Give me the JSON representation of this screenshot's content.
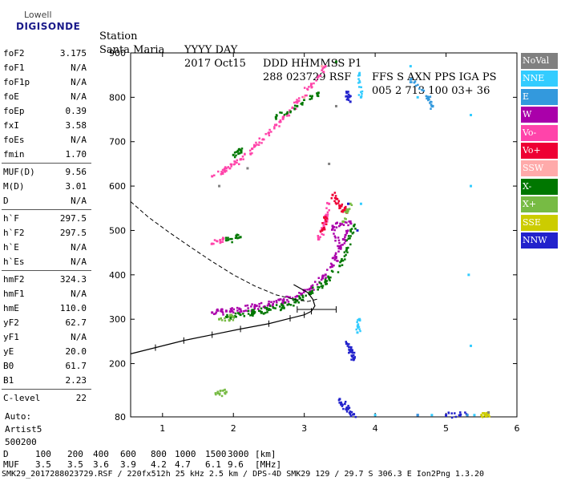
{
  "logo": {
    "brand": "Lowell",
    "product": "DIGISONDE"
  },
  "header": {
    "row1": [
      "Station",
      "YYYY DAY",
      "DDD HHMMSS P1",
      "FFS S AXN PPS IGA PS"
    ],
    "row2": [
      "Santa Maria",
      "2017 Oct15",
      "288 023729 RSF",
      "005 2 713 100 03+ 36"
    ]
  },
  "params": [
    {
      "label": "foF2",
      "value": "3.175"
    },
    {
      "label": "foF1",
      "value": "N/A"
    },
    {
      "label": "foF1p",
      "value": "N/A"
    },
    {
      "label": "foE",
      "value": "N/A"
    },
    {
      "label": "foEp",
      "value": "0.39"
    },
    {
      "label": "fxI",
      "value": "3.58"
    },
    {
      "label": "foEs",
      "value": "N/A"
    },
    {
      "label": "fmin",
      "value": "1.70"
    },
    {
      "label": "MUF(D)",
      "value": "9.56"
    },
    {
      "label": "M(D)",
      "value": "3.01"
    },
    {
      "label": "D",
      "value": "N/A"
    },
    {
      "label": "h`F",
      "value": "297.5"
    },
    {
      "label": "h`F2",
      "value": "297.5"
    },
    {
      "label": "h`E",
      "value": "N/A"
    },
    {
      "label": "h`Es",
      "value": "N/A"
    },
    {
      "label": "hmF2",
      "value": "324.3"
    },
    {
      "label": "hmF1",
      "value": "N/A"
    },
    {
      "label": "hmE",
      "value": "110.0"
    },
    {
      "label": "yF2",
      "value": "62.7"
    },
    {
      "label": "yF1",
      "value": "N/A"
    },
    {
      "label": "yE",
      "value": "20.0"
    },
    {
      "label": "B0",
      "value": "61.7"
    },
    {
      "label": "B1",
      "value": "2.23"
    },
    {
      "label": "C-level",
      "value": "22"
    }
  ],
  "auto": [
    "Auto:",
    "Artist5",
    "500200"
  ],
  "legend": [
    {
      "label": "NoVal",
      "color": "#808080"
    },
    {
      "label": "NNE",
      "color": "#33ccff"
    },
    {
      "label": "E",
      "color": "#3399dd"
    },
    {
      "label": "W",
      "color": "#aa00aa"
    },
    {
      "label": "Vo-",
      "color": "#ff44aa"
    },
    {
      "label": "Vo+",
      "color": "#ee0033"
    },
    {
      "label": "SSW",
      "color": "#ffaaaa"
    },
    {
      "label": "X-",
      "color": "#007700"
    },
    {
      "label": "X+",
      "color": "#77bb44"
    },
    {
      "label": "SSE",
      "color": "#cccc00"
    },
    {
      "label": "NNW",
      "color": "#2222cc"
    }
  ],
  "footer": {
    "row1": [
      "D",
      "100",
      "200",
      "400",
      "600",
      "800",
      "1000",
      "1500",
      "3000",
      "[km]"
    ],
    "row2": [
      "MUF",
      "3.5",
      "3.5",
      "3.6",
      "3.9",
      "4.2",
      "4.7",
      "6.1",
      "9.6",
      "[MHz]"
    ],
    "row3": "SMK29_2017288023729.RSF / 220fx512h 25 kHz 2.5 km / DPS-4D SMK29 129 / 29.7 S 306.3 E Ion2Png 1.3.20"
  },
  "chart_data": {
    "type": "scatter",
    "xlim": [
      0.55,
      6.0
    ],
    "ylim": [
      80,
      900
    ],
    "x_ticks": [
      1,
      2,
      3,
      4,
      5,
      6
    ],
    "y_ticks": [
      80,
      200,
      300,
      400,
      500,
      600,
      700,
      800,
      900
    ],
    "series": [
      {
        "name": "W",
        "color": "#aa00aa",
        "points": [
          [
            1.7,
            315
          ],
          [
            1.9,
            318
          ],
          [
            2.1,
            322
          ],
          [
            2.3,
            328
          ],
          [
            2.5,
            334
          ],
          [
            2.7,
            342
          ],
          [
            2.9,
            352
          ],
          [
            3.1,
            370
          ],
          [
            3.3,
            400
          ],
          [
            3.45,
            440
          ],
          [
            3.55,
            480
          ],
          [
            3.65,
            520
          ],
          [
            3.4,
            510
          ],
          [
            3.5,
            460
          ]
        ]
      },
      {
        "name": "Vo-",
        "color": "#ff44aa",
        "points": [
          [
            1.7,
            622
          ],
          [
            1.9,
            640
          ],
          [
            2.1,
            660
          ],
          [
            2.3,
            690
          ],
          [
            2.5,
            720
          ],
          [
            2.7,
            752
          ],
          [
            2.9,
            788
          ],
          [
            3.1,
            830
          ],
          [
            3.3,
            870
          ],
          [
            3.35,
            560
          ],
          [
            3.3,
            520
          ],
          [
            3.2,
            480
          ],
          [
            1.7,
            470
          ],
          [
            1.85,
            480
          ]
        ]
      },
      {
        "name": "Vo+",
        "color": "#ee0033",
        "points": [
          [
            3.3,
            530
          ],
          [
            3.25,
            500
          ],
          [
            3.4,
            580
          ],
          [
            3.5,
            555
          ],
          [
            3.6,
            540
          ]
        ]
      },
      {
        "name": "X-",
        "color": "#007700",
        "points": [
          [
            1.9,
            305
          ],
          [
            2.1,
            310
          ],
          [
            2.3,
            316
          ],
          [
            2.5,
            322
          ],
          [
            2.7,
            330
          ],
          [
            2.9,
            342
          ],
          [
            3.1,
            360
          ],
          [
            3.3,
            385
          ],
          [
            3.5,
            420
          ],
          [
            3.6,
            460
          ],
          [
            3.7,
            510
          ],
          [
            2.6,
            755
          ],
          [
            2.9,
            780
          ],
          [
            3.2,
            810
          ],
          [
            3.45,
            880
          ],
          [
            2.0,
            670
          ],
          [
            2.1,
            680
          ],
          [
            1.9,
            478
          ],
          [
            2.1,
            485
          ]
        ]
      },
      {
        "name": "X+",
        "color": "#77bb44",
        "points": [
          [
            1.8,
            300
          ],
          [
            2.0,
            305
          ],
          [
            3.65,
            560
          ],
          [
            3.55,
            520
          ],
          [
            1.75,
            133
          ],
          [
            1.9,
            136
          ]
        ]
      },
      {
        "name": "NNW",
        "color": "#2222cc",
        "points": [
          [
            3.6,
            245
          ],
          [
            3.65,
            230
          ],
          [
            3.7,
            210
          ],
          [
            3.65,
            790
          ],
          [
            3.6,
            810
          ],
          [
            3.62,
            560
          ],
          [
            3.75,
            500
          ],
          [
            3.5,
            120
          ],
          [
            3.6,
            100
          ],
          [
            3.7,
            86
          ],
          [
            4.6,
            84
          ],
          [
            5.0,
            84
          ],
          [
            5.3,
            84
          ]
        ]
      },
      {
        "name": "NNE",
        "color": "#33ccff",
        "points": [
          [
            3.8,
            800
          ],
          [
            3.78,
            850
          ],
          [
            3.8,
            560
          ],
          [
            3.78,
            300
          ],
          [
            3.75,
            270
          ],
          [
            4.5,
            870
          ],
          [
            4.6,
            800
          ],
          [
            5.35,
            760
          ],
          [
            5.35,
            600
          ],
          [
            5.32,
            400
          ],
          [
            5.35,
            240
          ],
          [
            4.0,
            84
          ],
          [
            4.8,
            84
          ],
          [
            5.4,
            84
          ]
        ]
      },
      {
        "name": "E",
        "color": "#3399dd",
        "points": [
          [
            4.5,
            840
          ],
          [
            4.75,
            800
          ],
          [
            4.8,
            780
          ],
          [
            4.6,
            84
          ],
          [
            5.3,
            84
          ]
        ]
      },
      {
        "name": "SSE",
        "color": "#cccc00",
        "points": [
          [
            5.5,
            84
          ],
          [
            5.6,
            86
          ]
        ]
      },
      {
        "name": "SSW",
        "color": "#ffaaaa",
        "points": [
          [
            3.25,
            870
          ],
          [
            3.0,
            800
          ]
        ]
      },
      {
        "name": "NoVal",
        "color": "#808080",
        "points": [
          [
            3.45,
            780
          ],
          [
            3.35,
            650
          ],
          [
            1.8,
            600
          ],
          [
            2.2,
            640
          ],
          [
            5.6,
            90
          ]
        ]
      }
    ],
    "profile_curve": {
      "x": [
        0.55,
        0.9,
        1.3,
        1.7,
        2.1,
        2.5,
        2.8,
        3.0,
        3.1,
        3.15,
        3.12,
        3.05,
        2.85
      ],
      "y": [
        222,
        236,
        252,
        265,
        278,
        290,
        302,
        310,
        318,
        330,
        345,
        360,
        378
      ]
    },
    "profile_errorbar": {
      "x": [
        2.9,
        3.45
      ],
      "y": 322
    },
    "model_curve": {
      "x": [
        0.55,
        0.8,
        1.1,
        1.4,
        1.7,
        2.0,
        2.3,
        2.6,
        2.85,
        3.05,
        3.18
      ],
      "y": [
        565,
        530,
        495,
        462,
        430,
        400,
        375,
        355,
        345,
        340,
        345
      ]
    }
  }
}
